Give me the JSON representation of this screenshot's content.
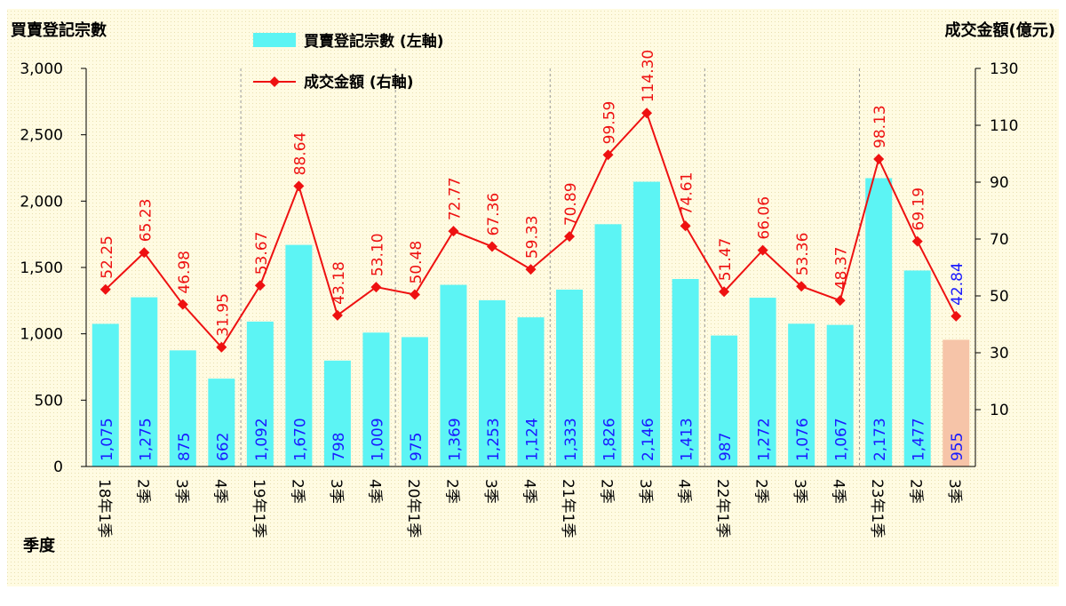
{
  "chart_data": {
    "type": "bar-line",
    "y_title": "買賣登記宗數",
    "y2_title": "成交金額(億元)",
    "x_title": "季度",
    "categories": [
      "18年1季",
      "2季",
      "3季",
      "4季",
      "19年1季",
      "2季",
      "3季",
      "4季",
      "20年1季",
      "2季",
      "3季",
      "4季",
      "21年1季",
      "2季",
      "3季",
      "4季",
      "22年1季",
      "2季",
      "3季",
      "4季",
      "23年1季",
      "2季",
      "3季"
    ],
    "ylim": [
      0,
      3000
    ],
    "yticks": [
      0,
      500,
      {
        "value": 1000,
        "label": "1,000"
      },
      {
        "value": 1500,
        "label": "1,500"
      },
      {
        "value": 2000,
        "label": "2,000"
      },
      {
        "value": 2500,
        "label": "2,500"
      },
      {
        "value": 3000,
        "label": "3,000"
      }
    ],
    "y2lim": [
      -10,
      130
    ],
    "y2ticks": [
      10,
      30,
      50,
      70,
      90,
      110,
      130
    ],
    "series": [
      {
        "name": "買賣登記宗數 (左軸)",
        "kind": "bar",
        "axis": "y",
        "color": "#5cf4f4",
        "label_color": "#1a1aff",
        "colors": [
          "#5cf4f4",
          "#5cf4f4",
          "#5cf4f4",
          "#5cf4f4",
          "#5cf4f4",
          "#5cf4f4",
          "#5cf4f4",
          "#5cf4f4",
          "#5cf4f4",
          "#5cf4f4",
          "#5cf4f4",
          "#5cf4f4",
          "#5cf4f4",
          "#5cf4f4",
          "#5cf4f4",
          "#5cf4f4",
          "#5cf4f4",
          "#5cf4f4",
          "#5cf4f4",
          "#5cf4f4",
          "#5cf4f4",
          "#5cf4f4",
          "#f6c4a8"
        ],
        "values": [
          1075,
          1275,
          875,
          662,
          1092,
          1670,
          798,
          1009,
          975,
          1369,
          1253,
          1124,
          1333,
          1826,
          2146,
          1413,
          987,
          1272,
          1076,
          1067,
          2173,
          1477,
          955
        ],
        "value_labels": [
          "1,075",
          "1,275",
          "875",
          "662",
          "1,092",
          "1,670",
          "798",
          "1,009",
          "975",
          "1,369",
          "1,253",
          "1,124",
          "1,333",
          "1,826",
          "2,146",
          "1,413",
          "987",
          "1,272",
          "1,076",
          "1,067",
          "2,173",
          "1,477",
          "955"
        ]
      },
      {
        "name": "成交金額 (右軸)",
        "kind": "line",
        "axis": "y2",
        "color": "#ee1111",
        "label_colors": [
          "#ee1111",
          "#ee1111",
          "#ee1111",
          "#ee1111",
          "#ee1111",
          "#ee1111",
          "#ee1111",
          "#ee1111",
          "#ee1111",
          "#ee1111",
          "#ee1111",
          "#ee1111",
          "#ee1111",
          "#ee1111",
          "#ee1111",
          "#ee1111",
          "#ee1111",
          "#ee1111",
          "#ee1111",
          "#ee1111",
          "#ee1111",
          "#ee1111",
          "#1a1aff"
        ],
        "values": [
          52.25,
          65.23,
          46.98,
          31.95,
          53.67,
          88.64,
          43.18,
          53.1,
          50.48,
          72.77,
          67.36,
          59.33,
          70.89,
          99.59,
          114.3,
          74.61,
          51.47,
          66.06,
          53.36,
          48.37,
          98.13,
          69.19,
          42.84
        ],
        "value_labels": [
          "52.25",
          "65.23",
          "46.98",
          "31.95",
          "53.67",
          "88.64",
          "43.18",
          "53.10",
          "50.48",
          "72.77",
          "67.36",
          "59.33",
          "70.89",
          "99.59",
          "114.30",
          "74.61",
          "51.47",
          "66.06",
          "53.36",
          "48.37",
          "98.13",
          "69.19",
          "42.84"
        ]
      }
    ]
  }
}
